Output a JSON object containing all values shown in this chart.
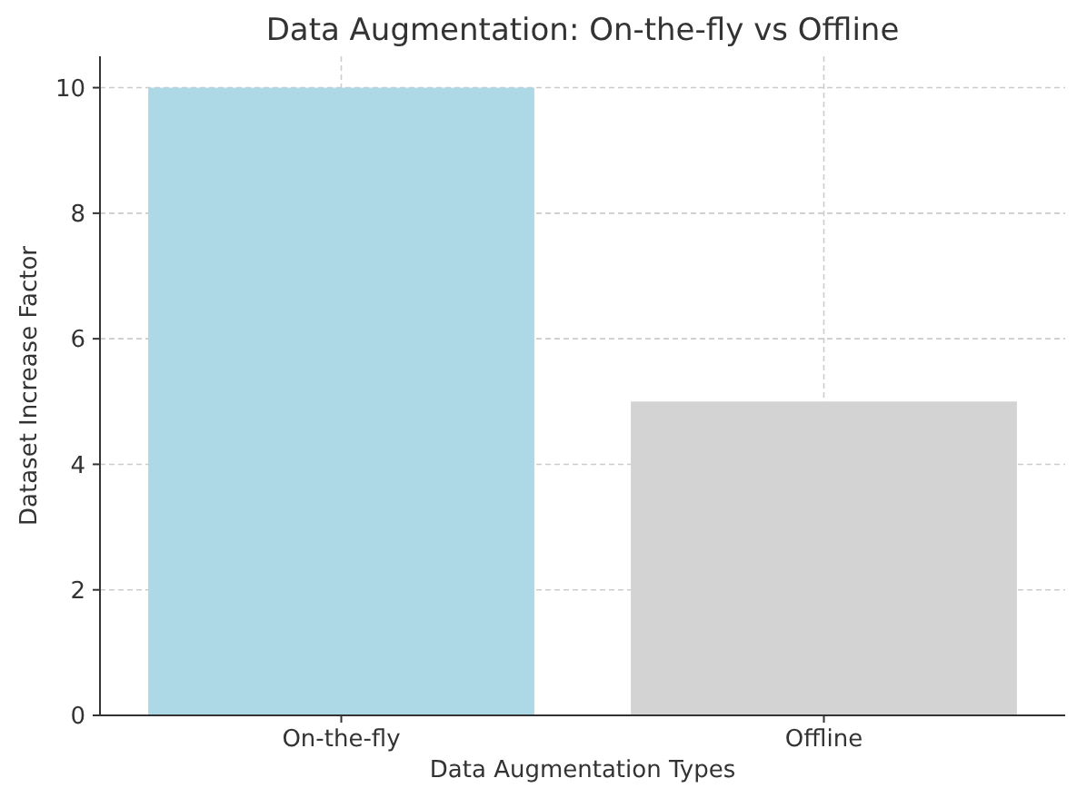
{
  "chart_data": {
    "type": "bar",
    "title": "Data Augmentation: On-the-fly vs Offline",
    "xlabel": "Data Augmentation Types",
    "ylabel": "Dataset Increase Factor",
    "categories": [
      "On-the-fly",
      "Offline"
    ],
    "values": [
      10,
      5
    ],
    "colors": [
      "#add8e6",
      "#d3d3d3"
    ],
    "ylim": [
      0,
      10.5
    ],
    "yticks": [
      0,
      2,
      4,
      6,
      8,
      10
    ],
    "grid": true
  }
}
